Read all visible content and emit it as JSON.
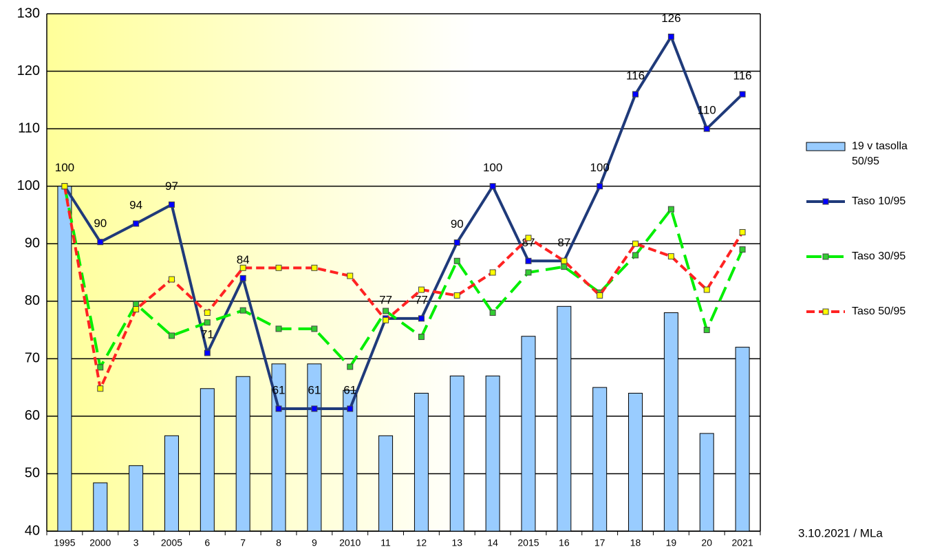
{
  "chart_data": {
    "type": "bar-line",
    "categories": [
      "1995",
      "2000",
      "3",
      "2005",
      "6",
      "7",
      "8",
      "9",
      "2010",
      "11",
      "12",
      "13",
      "14",
      "2015",
      "16",
      "17",
      "18",
      "19",
      "20",
      "2021"
    ],
    "ylim": [
      40,
      130
    ],
    "yticks": [
      40,
      50,
      60,
      70,
      80,
      90,
      100,
      110,
      120,
      130
    ],
    "grid": true,
    "legend": "right",
    "annotation": "3.10.2021 / MLa",
    "series": [
      {
        "name": "19 v tasolla 50/95",
        "type": "bar",
        "color": "#99ccff",
        "values": [
          100,
          48.4,
          51.4,
          56.6,
          64.8,
          66.9,
          69.1,
          69.1,
          64.5,
          56.6,
          64,
          67,
          67,
          73.9,
          79.1,
          65,
          64,
          78,
          57,
          72
        ]
      },
      {
        "name": "Taso 10/95",
        "type": "line",
        "color": "#1f3a7a",
        "marker": "#0000ff",
        "dash": "none",
        "values": [
          100,
          90.3,
          93.5,
          96.8,
          71,
          84,
          61.3,
          61.3,
          61.3,
          77,
          77,
          90.2,
          100,
          87,
          87,
          100,
          116,
          126,
          110,
          116
        ],
        "value_labels": [
          "100",
          "90",
          "94",
          "97",
          "71",
          "84",
          "61",
          "61",
          "61",
          "77",
          "77",
          "90",
          "100",
          "87",
          "87",
          "100",
          "116",
          "126",
          "110",
          "116"
        ]
      },
      {
        "name": "Taso 30/95",
        "type": "line",
        "color": "#00ee00",
        "marker": "#33cc33",
        "dash": "22 10",
        "values": [
          100,
          68.5,
          79.5,
          74,
          76.3,
          78.4,
          75.2,
          75.2,
          68.6,
          78.3,
          73.8,
          87,
          78,
          85,
          86,
          81.5,
          88,
          96,
          75,
          89
        ]
      },
      {
        "name": "Taso 50/95",
        "type": "line",
        "color": "#ff2222",
        "marker": "#ffff00",
        "dash": "12 6",
        "values": [
          100,
          64.8,
          78.6,
          83.8,
          78,
          85.8,
          85.8,
          85.8,
          84.4,
          76.7,
          82,
          81,
          85,
          91,
          87,
          81,
          90,
          87.8,
          82,
          92
        ]
      }
    ]
  }
}
